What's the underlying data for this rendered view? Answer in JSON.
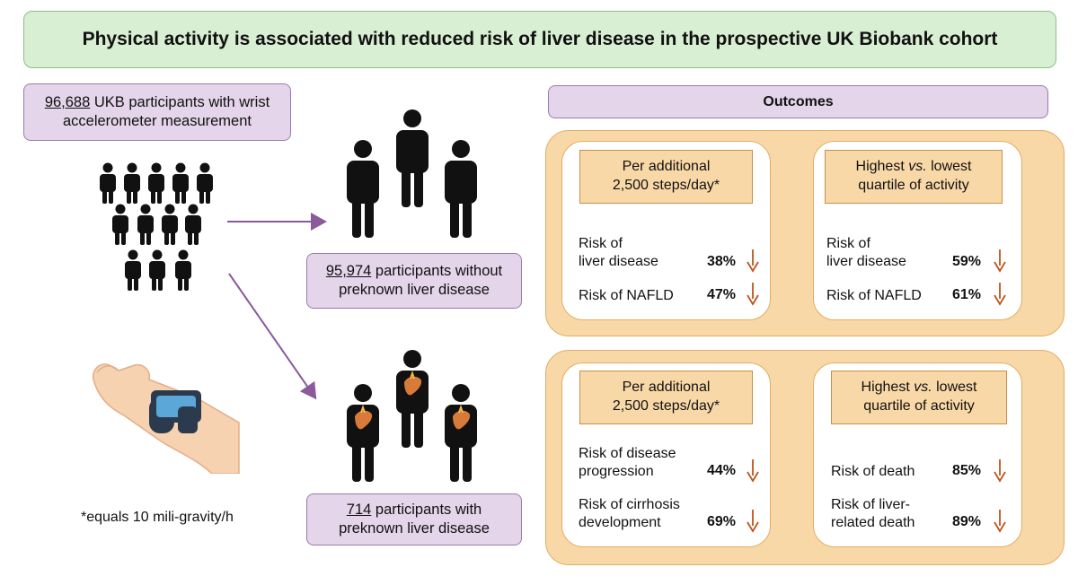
{
  "title": "Physical activity is associated with reduced risk of liver disease in the prospective UK Biobank cohort",
  "cohort": {
    "count": "96,688",
    "label": " UKB participants with wrist",
    "label2": "accelerometer measurement"
  },
  "group_without": {
    "count": "95,974",
    "label": " participants without",
    "label2": "preknown liver disease"
  },
  "group_with": {
    "count": "714",
    "label": " participants with",
    "label2": "preknown liver disease"
  },
  "footnote": "*equals 10 mili-gravity/h",
  "outcomes_header": "Outcomes",
  "panel_top": {
    "left": {
      "header1": "Per additional",
      "header2": "2,500 steps/day*",
      "rows": [
        {
          "label1": "Risk of",
          "label2": "liver disease",
          "value": "38%"
        },
        {
          "label1": "Risk of NAFLD",
          "label2": "",
          "value": "47%"
        }
      ]
    },
    "right": {
      "header1_a": "Highest ",
      "header1_b": "vs.",
      "header1_c": " lowest",
      "header2": "quartile of activity",
      "rows": [
        {
          "label1": "Risk of",
          "label2": "liver disease",
          "value": "59%"
        },
        {
          "label1": "Risk of NAFLD",
          "label2": "",
          "value": "61%"
        }
      ]
    }
  },
  "panel_bottom": {
    "left": {
      "header1": "Per additional",
      "header2": "2,500 steps/day*",
      "rows": [
        {
          "label1": "Risk of disease",
          "label2": "progression",
          "value": "44%"
        },
        {
          "label1": "Risk of cirrhosis",
          "label2": "development",
          "value": "69%"
        }
      ]
    },
    "right": {
      "header1_a": "Highest ",
      "header1_b": "vs.",
      "header1_c": " lowest",
      "header2": "quartile of activity",
      "rows": [
        {
          "label1": "Risk of death",
          "label2": "",
          "value": "85%"
        },
        {
          "label1": "Risk of liver-",
          "label2": "related death",
          "value": "89%"
        }
      ]
    }
  },
  "colors": {
    "arrow_down": "#c0521b",
    "flow_arrow": "#8a5a9c",
    "liver": "#d87a3a"
  },
  "icons": [
    "person-icon",
    "liver-icon",
    "watch-icon",
    "arrow-down-icon",
    "flow-arrow-icon"
  ]
}
